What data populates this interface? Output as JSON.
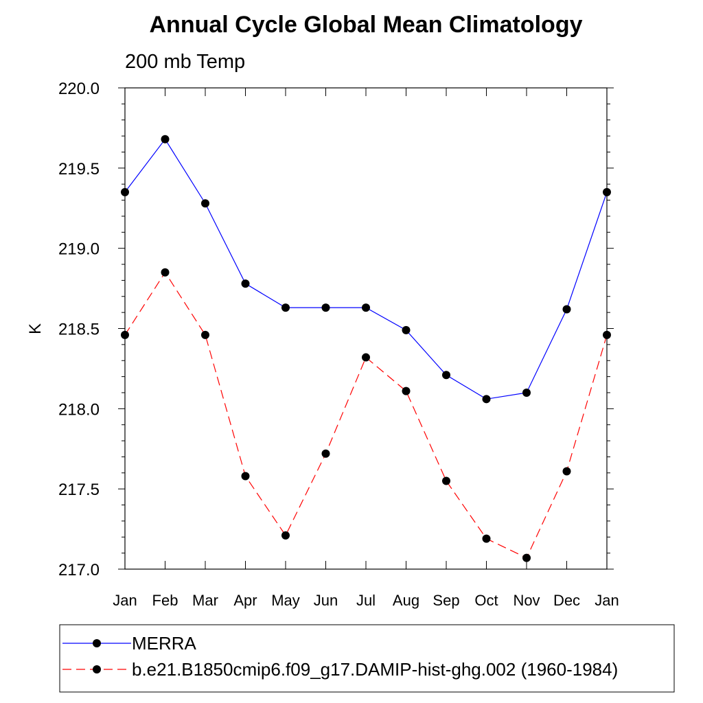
{
  "chart_data": {
    "type": "line",
    "title": "Annual Cycle Global Mean Climatology",
    "subtitle": "200 mb Temp",
    "ylabel": "K",
    "xlabel": "",
    "categories": [
      "Jan",
      "Feb",
      "Mar",
      "Apr",
      "May",
      "Jun",
      "Jul",
      "Aug",
      "Sep",
      "Oct",
      "Nov",
      "Dec",
      "Jan"
    ],
    "ylim": [
      217.0,
      220.0
    ],
    "yticks": [
      217.0,
      217.5,
      218.0,
      218.5,
      219.0,
      219.5,
      220.0
    ],
    "ytick_labels": [
      "217.0",
      "217.5",
      "218.0",
      "218.5",
      "219.0",
      "219.5",
      "220.0"
    ],
    "grid": false,
    "legend_position": "bottom",
    "series": [
      {
        "name": "MERRA",
        "color": "#0000ff",
        "line_style": "solid",
        "marker": "filled-circle",
        "values": [
          219.35,
          219.68,
          219.28,
          218.78,
          218.63,
          218.63,
          218.63,
          218.49,
          218.21,
          218.06,
          218.1,
          218.62,
          219.35
        ]
      },
      {
        "name": "b.e21.B1850cmip6.f09_g17.DAMIP-hist-ghg.002 (1960-1984)",
        "color": "#ff0000",
        "line_style": "dashed",
        "marker": "filled-circle",
        "values": [
          218.46,
          218.85,
          218.46,
          217.58,
          217.21,
          217.72,
          218.32,
          218.11,
          217.55,
          217.19,
          217.07,
          217.61,
          218.46
        ]
      }
    ]
  }
}
